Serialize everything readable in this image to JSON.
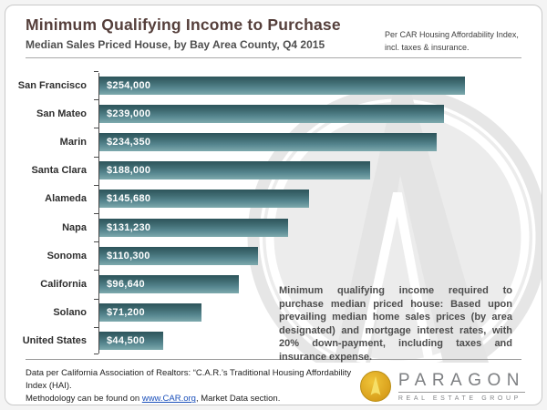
{
  "header": {
    "title": "Minimum Qualifying Income to Purchase",
    "subtitle": "Median Sales Priced House, by Bay Area County, Q4 2015",
    "note": "Per CAR Housing Affordability Index, incl. taxes & insurance."
  },
  "chart_data": {
    "type": "bar",
    "orientation": "horizontal",
    "title": "Minimum Qualifying Income to Purchase",
    "subtitle": "Median Sales Priced House, by Bay Area County, Q4 2015",
    "categories": [
      "San Francisco",
      "San Mateo",
      "Marin",
      "Santa Clara",
      "Alameda",
      "Napa",
      "Sonoma",
      "California",
      "Solano",
      "United States"
    ],
    "values": [
      254000,
      239000,
      234350,
      188000,
      145680,
      131230,
      110300,
      96640,
      71200,
      44500
    ],
    "value_labels": [
      "$254,000",
      "$239,000",
      "$234,350",
      "$188,000",
      "$145,680",
      "$131,230",
      "$110,300",
      "$96,640",
      "$71,200",
      "$44,500"
    ],
    "xlabel": "",
    "ylabel": "",
    "xlim": [
      0,
      295000
    ],
    "grid": false,
    "legend": false,
    "bar_color_top": "#2d545a",
    "bar_color_bottom": "#7da9ad",
    "value_label_color": "#ffffff"
  },
  "annotation": {
    "text": "Minimum qualifying income required to purchase median priced house: Based upon prevailing median home sales prices (by area designated) and mortgage interest rates, with 20% down-payment, including taxes and insurance expense."
  },
  "footer": {
    "line1": "Data per California Association of Realtors: “C.A.R.’s Traditional Housing Affordability Index (HAI).",
    "line2_before_link": "Methodology can be found on ",
    "link_text": "www.CAR.org",
    "line2_after_link": ", Market Data section."
  },
  "logo": {
    "name": "PARAGON",
    "tagline": "REAL ESTATE GROUP",
    "gold": "#d9a01c"
  }
}
